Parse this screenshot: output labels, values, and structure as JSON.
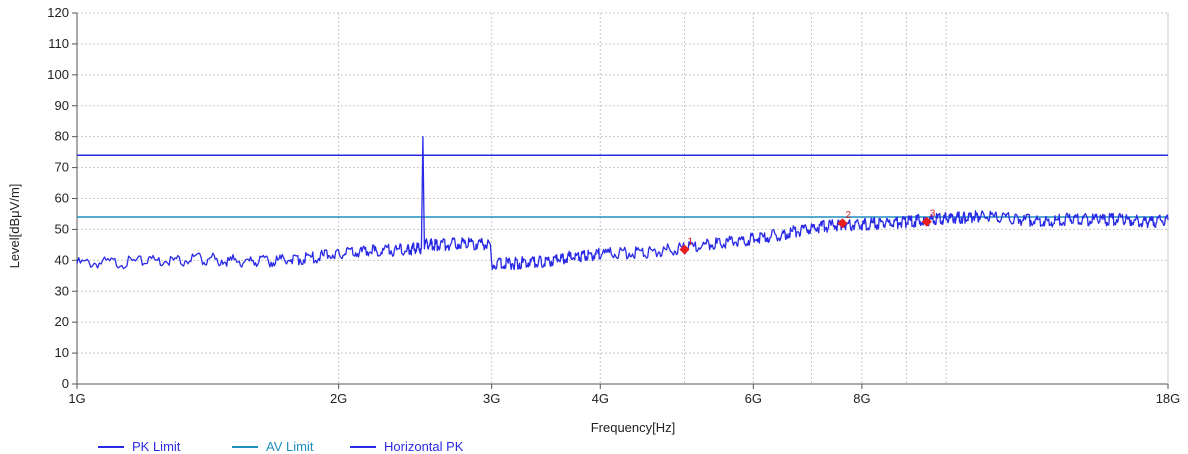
{
  "chart_data": {
    "type": "line",
    "title": "",
    "xlabel": "Frequency[Hz]",
    "ylabel": "Level[dBμV/m]",
    "x_scale": "log",
    "xlim": [
      1,
      18
    ],
    "ylim": [
      0,
      120
    ],
    "y_ticks": [
      0,
      10,
      20,
      30,
      40,
      50,
      60,
      70,
      80,
      90,
      100,
      110,
      120
    ],
    "x_ticks": [
      {
        "value": 1,
        "label": "1G"
      },
      {
        "value": 2,
        "label": "2G"
      },
      {
        "value": 3,
        "label": "3G"
      },
      {
        "value": 4,
        "label": "4G"
      },
      {
        "value": 6,
        "label": "6G"
      },
      {
        "value": 8,
        "label": "8G"
      },
      {
        "value": 18,
        "label": "18G"
      }
    ],
    "x_gridlines": [
      1,
      2,
      3,
      4,
      5,
      6,
      7,
      8,
      9,
      10,
      18
    ],
    "grid": true,
    "legend_position": "bottom-left",
    "series": [
      {
        "name": "PK Limit",
        "color": "#2a2ae6",
        "x": [
          1,
          18
        ],
        "y": [
          74,
          74
        ]
      },
      {
        "name": "AV Limit",
        "color": "#1f8fbf",
        "x": [
          1,
          18
        ],
        "y": [
          54,
          54
        ]
      },
      {
        "name": "Horizontal PK",
        "color": "#2a2ae6",
        "x": [
          1.0,
          1.2,
          1.4,
          1.6,
          1.8,
          2.0,
          2.2,
          2.4,
          2.49,
          2.5,
          2.51,
          2.6,
          2.8,
          2.99,
          3.0,
          3.2,
          3.4,
          3.6,
          3.8,
          4.0,
          4.5,
          5.0,
          5.5,
          6.0,
          6.5,
          7.0,
          7.5,
          8.0,
          8.5,
          9.0,
          9.5,
          10.0,
          10.5,
          11.0,
          12.0,
          13.0,
          14.0,
          15.0,
          16.0,
          17.0,
          18.0
        ],
        "y": [
          39,
          39.5,
          40.5,
          39.5,
          40.5,
          42,
          43,
          43.5,
          44,
          80,
          45,
          45,
          45.5,
          45,
          39,
          39,
          39.5,
          40.5,
          41.5,
          42,
          42.5,
          44,
          45.5,
          47,
          48.5,
          50.5,
          51.5,
          51.5,
          52,
          52.5,
          53,
          53.5,
          54,
          54.5,
          53.5,
          52.5,
          53.5,
          53,
          53.5,
          52.5,
          53
        ]
      }
    ],
    "markers": [
      {
        "label": "1",
        "x": 5.0,
        "y": 43.5
      },
      {
        "label": "2",
        "x": 7.6,
        "y": 52
      },
      {
        "label": "3",
        "x": 9.5,
        "y": 52.5
      }
    ]
  }
}
